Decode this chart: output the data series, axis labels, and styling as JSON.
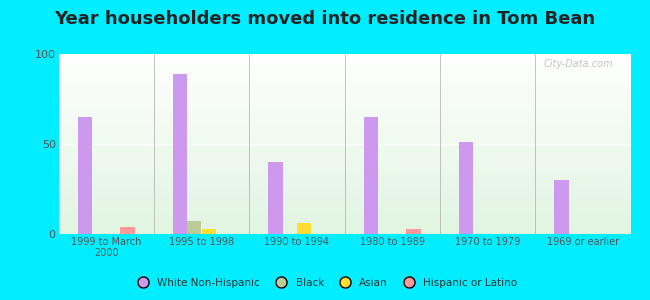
{
  "title": "Year householders moved into residence in Tom Bean",
  "categories": [
    "1999 to March\n2000",
    "1995 to 1998",
    "1990 to 1994",
    "1980 to 1989",
    "1970 to 1979",
    "1969 or earlier"
  ],
  "series": {
    "White Non-Hispanic": [
      65,
      89,
      40,
      65,
      51,
      30
    ],
    "Black": [
      0,
      7,
      0,
      0,
      0,
      0
    ],
    "Asian": [
      0,
      3,
      6,
      0,
      0,
      0
    ],
    "Hispanic or Latino": [
      4,
      0,
      0,
      3,
      0,
      0
    ]
  },
  "colors": {
    "White Non-Hispanic": "#cc99ee",
    "Black": "#bbcc99",
    "Asian": "#ffdd33",
    "Hispanic or Latino": "#ff9999"
  },
  "ylim": [
    0,
    100
  ],
  "yticks": [
    0,
    50,
    100
  ],
  "bar_width": 0.15,
  "background_outer": "#00eeff",
  "title_fontsize": 13,
  "watermark": "City-Data.com"
}
